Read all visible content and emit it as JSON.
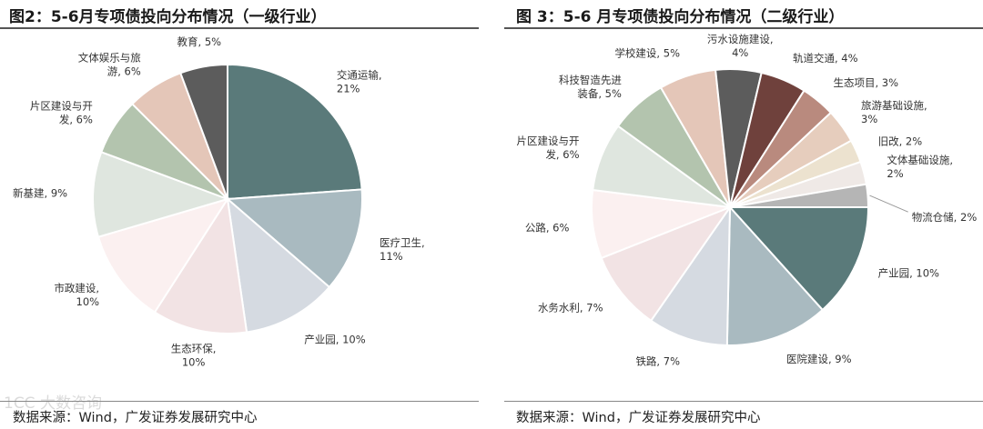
{
  "watermark": "1CC 大数咨询",
  "panels": [
    {
      "title": "图2：5-6月专项债投向分布情况（一级行业）",
      "source": "数据来源：Wind，广发证券发展研究中心"
    },
    {
      "title": "图 3：5-6 月专项债投向分布情况（二级行业）",
      "source": "数据来源：Wind，广发证券发展研究中心"
    }
  ],
  "chart_data": [
    {
      "type": "pie",
      "title": "图2：5-6月专项债投向分布情况（一级行业）",
      "unit": "%",
      "slices": [
        {
          "label": [
            "交通运输,",
            "21%"
          ],
          "value": 21,
          "color": "#5a7a7a"
        },
        {
          "label": [
            "医疗卫生,",
            "11%"
          ],
          "value": 11,
          "color": "#a9bac0"
        },
        {
          "label": [
            "产业园, 10%"
          ],
          "value": 10,
          "color": "#d5dae1"
        },
        {
          "label": [
            "生态环保,",
            "10%"
          ],
          "value": 10,
          "color": "#f2e3e4"
        },
        {
          "label": [
            "市政建设,",
            "10%"
          ],
          "value": 10,
          "color": "#fbf0f0"
        },
        {
          "label": [
            "新基建, 9%"
          ],
          "value": 9,
          "color": "#dfe6df"
        },
        {
          "label": [
            "片区建设与开",
            "发, 6%"
          ],
          "value": 6,
          "color": "#b3c4ae"
        },
        {
          "label": [
            "文体娱乐与旅",
            "游, 6%"
          ],
          "value": 6,
          "color": "#e4c6b8"
        },
        {
          "label": [
            "教育, 5%"
          ],
          "value": 5,
          "color": "#5c5c5c"
        }
      ]
    },
    {
      "type": "pie",
      "title": "图 3：5-6 月专项债投向分布情况（二级行业）",
      "unit": "%",
      "slices": [
        {
          "label": [
            "学校建设, 5%"
          ],
          "value": 5,
          "color": "#e4c6b8"
        },
        {
          "label": [
            "污水设施建设,",
            "4%"
          ],
          "value": 4,
          "color": "#5c5c5c"
        },
        {
          "label": [
            "轨道交通, 4%"
          ],
          "value": 4,
          "color": "#6f413c"
        },
        {
          "label": [
            "生态项目, 3%"
          ],
          "value": 3,
          "color": "#b98a7e"
        },
        {
          "label": [
            "旅游基础设施,",
            "3%"
          ],
          "value": 3,
          "color": "#e6cdbd"
        },
        {
          "label": [
            "旧改, 2%"
          ],
          "value": 2,
          "color": "#ece2cf"
        },
        {
          "label": [
            "文体基础设施,",
            "2%"
          ],
          "value": 2,
          "color": "#efe9e6"
        },
        {
          "label": [
            "物流仓储, 2%"
          ],
          "value": 2,
          "color": "#b5b5b5"
        },
        {
          "label": [
            "产业园, 10%"
          ],
          "value": 10,
          "color": "#5a7a7a"
        },
        {
          "label": [
            "医院建设, 9%"
          ],
          "value": 9,
          "color": "#a9bac0"
        },
        {
          "label": [
            "铁路, 7%"
          ],
          "value": 7,
          "color": "#d5dae1"
        },
        {
          "label": [
            "水务水利, 7%"
          ],
          "value": 7,
          "color": "#f2e3e4"
        },
        {
          "label": [
            "公路, 6%"
          ],
          "value": 6,
          "color": "#fbf0f0"
        },
        {
          "label": [
            "片区建设与开",
            "发, 6%"
          ],
          "value": 6,
          "color": "#dfe6df"
        },
        {
          "label": [
            "科技智造先进",
            "装备, 5%"
          ],
          "value": 5,
          "color": "#b3c4ae"
        }
      ]
    }
  ]
}
